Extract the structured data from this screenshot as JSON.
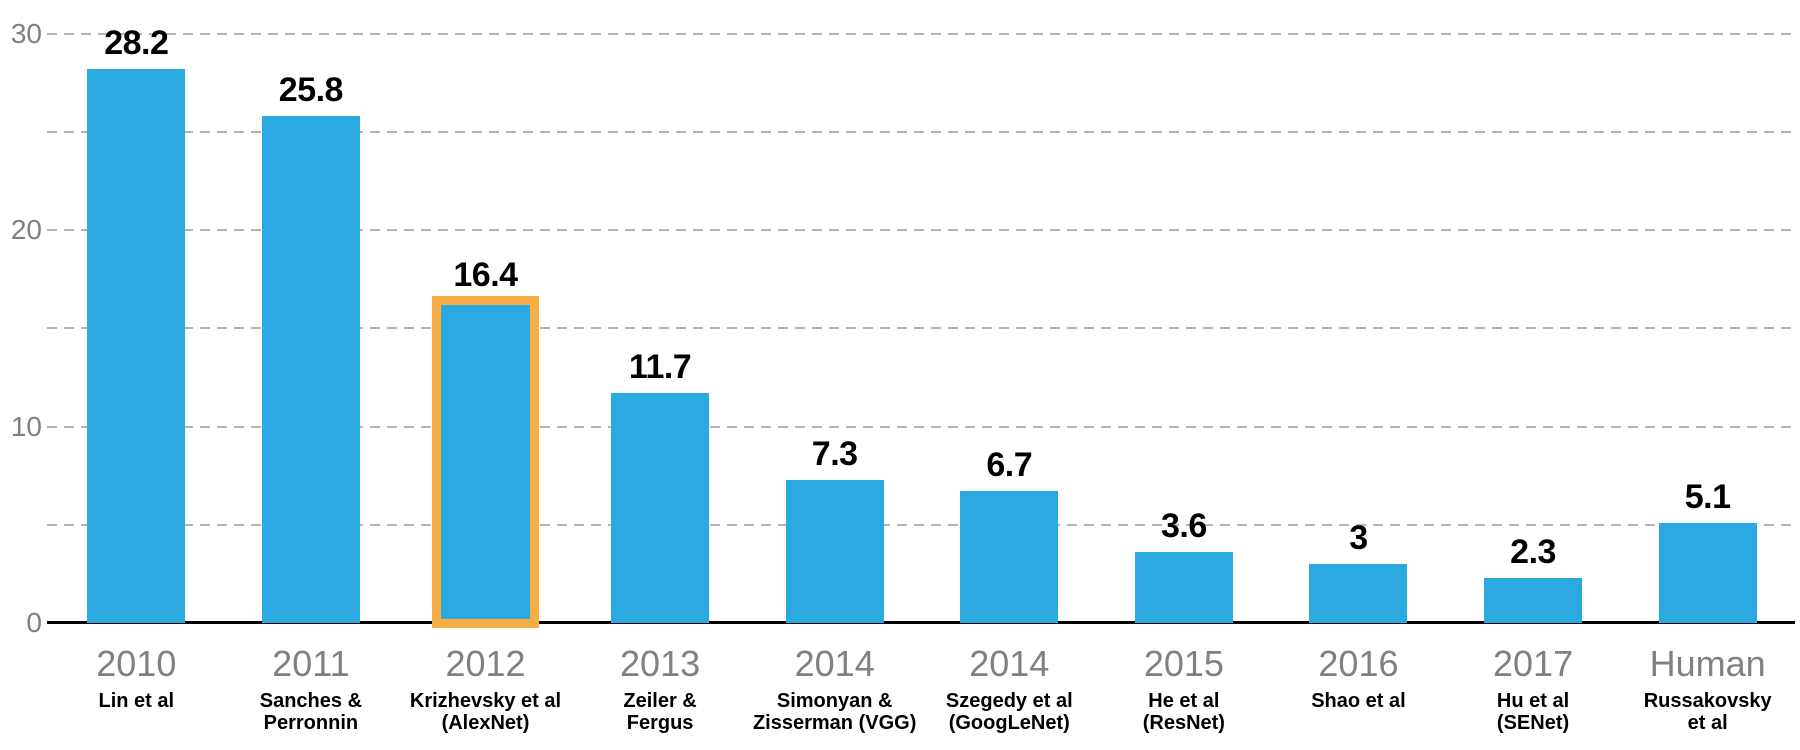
{
  "chart_data": {
    "type": "bar",
    "title": "",
    "xlabel": "",
    "ylabel": "",
    "legend": "none",
    "grid": "dashed horizontal, every 5 units",
    "ylim": [
      0,
      30
    ],
    "ytick_values": [
      0,
      10,
      20,
      30
    ],
    "ytick_labels": [
      "0",
      "10",
      "20",
      "30"
    ],
    "gridline_values": [
      5,
      10,
      15,
      20,
      25,
      30
    ],
    "categories": [
      "2010",
      "2011",
      "2012",
      "2013",
      "2014",
      "2014",
      "2015",
      "2016",
      "2017",
      "Human"
    ],
    "values": [
      28.2,
      25.8,
      16.4,
      11.7,
      7.3,
      6.7,
      3.6,
      3,
      2.3,
      5.1
    ],
    "value_labels": [
      "28.2",
      "25.8",
      "16.4",
      "11.7",
      "7.3",
      "6.7",
      "3.6",
      "3",
      "2.3",
      "5.1"
    ],
    "sub_labels": [
      [
        "Lin et al"
      ],
      [
        "Sanches &",
        "Perronnin"
      ],
      [
        "Krizhevsky et al",
        "(AlexNet)"
      ],
      [
        "Zeiler &",
        "Fergus"
      ],
      [
        "Simonyan &",
        "Zisserman (VGG)"
      ],
      [
        "Szegedy et al",
        "(GoogLeNet)"
      ],
      [
        "He et al",
        "(ResNet)"
      ],
      [
        "Shao et al"
      ],
      [
        "Hu et al",
        "(SENet)"
      ],
      [
        "Russakovsky",
        "et al"
      ]
    ],
    "highlighted_index": 2,
    "highlighted_category": "2012",
    "colors": {
      "bar": "#2BA9E1",
      "highlight_border": "#F8AE44",
      "gridline": "#B3B3B3",
      "axis_line": "#000000",
      "ytick_label": "#808080",
      "year_label": "#808080",
      "author_label": "#000000",
      "value_label": "#000000",
      "background": "#FFFFFF"
    }
  }
}
